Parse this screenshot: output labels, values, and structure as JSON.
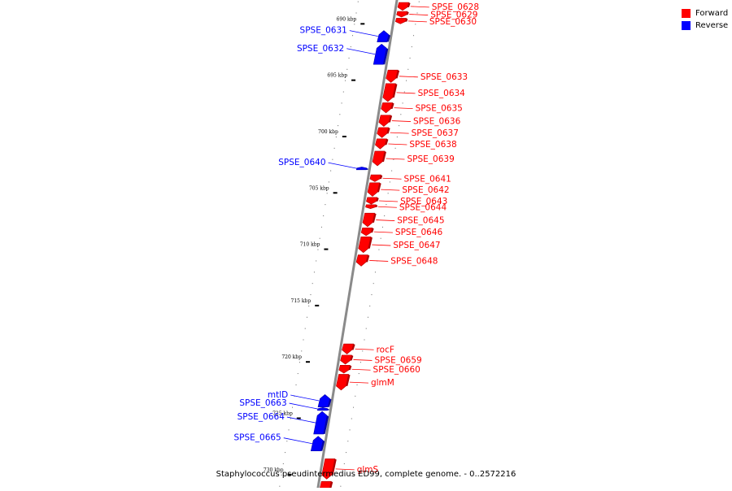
{
  "caption": "Staphylococcus pseudintermedius ED99, complete genome. - 0..2572216",
  "legend": [
    {
      "label": "Forward",
      "color": "#ff0000"
    },
    {
      "label": "Reverse",
      "color": "#0000ff"
    }
  ],
  "strand_colors": {
    "forward": "#ff0000",
    "reverse": "#0000ff",
    "backbone": "#8a8a8a"
  },
  "ticks": [
    {
      "label": "690 kbp",
      "kbp": 690
    },
    {
      "label": "695 kbp",
      "kbp": 695
    },
    {
      "label": "700 kbp",
      "kbp": 700
    },
    {
      "label": "705 kbp",
      "kbp": 705
    },
    {
      "label": "710 kbp",
      "kbp": 710
    },
    {
      "label": "715 kbp",
      "kbp": 715
    },
    {
      "label": "720 kbp",
      "kbp": 720
    },
    {
      "label": "725 kbp",
      "kbp": 725
    },
    {
      "label": "730 kbp",
      "kbp": 730
    }
  ],
  "genes": [
    {
      "name": "SPSE_0628",
      "strand": "forward",
      "start": 688.1,
      "end": 688.8
    },
    {
      "name": "SPSE_0629",
      "strand": "forward",
      "start": 688.9,
      "end": 689.4
    },
    {
      "name": "SPSE_0630",
      "strand": "forward",
      "start": 689.5,
      "end": 690.0
    },
    {
      "name": "SPSE_0631",
      "strand": "reverse",
      "start": 690.6,
      "end": 691.6
    },
    {
      "name": "SPSE_0632",
      "strand": "reverse",
      "start": 691.8,
      "end": 693.6
    },
    {
      "name": "SPSE_0633",
      "strand": "forward",
      "start": 694.1,
      "end": 695.2
    },
    {
      "name": "SPSE_0634",
      "strand": "forward",
      "start": 695.3,
      "end": 696.9
    },
    {
      "name": "SPSE_0635",
      "strand": "forward",
      "start": 697.0,
      "end": 697.9
    },
    {
      "name": "SPSE_0636",
      "strand": "forward",
      "start": 698.1,
      "end": 699.1
    },
    {
      "name": "SPSE_0637",
      "strand": "forward",
      "start": 699.2,
      "end": 700.1
    },
    {
      "name": "SPSE_0638",
      "strand": "forward",
      "start": 700.2,
      "end": 701.1
    },
    {
      "name": "SPSE_0639",
      "strand": "forward",
      "start": 701.3,
      "end": 702.6
    },
    {
      "name": "SPSE_0640",
      "strand": "reverse",
      "start": 702.7,
      "end": 702.95
    },
    {
      "name": "SPSE_0641",
      "strand": "forward",
      "start": 703.4,
      "end": 704.0
    },
    {
      "name": "SPSE_0642",
      "strand": "forward",
      "start": 704.1,
      "end": 705.3
    },
    {
      "name": "SPSE_0643",
      "strand": "forward",
      "start": 705.4,
      "end": 706.0
    },
    {
      "name": "SPSE_0644",
      "strand": "forward",
      "start": 706.05,
      "end": 706.4
    },
    {
      "name": "SPSE_0645",
      "strand": "forward",
      "start": 706.8,
      "end": 708.0
    },
    {
      "name": "SPSE_0646",
      "strand": "forward",
      "start": 708.1,
      "end": 708.8
    },
    {
      "name": "SPSE_0647",
      "strand": "forward",
      "start": 708.9,
      "end": 710.3
    },
    {
      "name": "SPSE_0648",
      "strand": "forward",
      "start": 710.5,
      "end": 711.5
    },
    {
      "name": "rocF",
      "strand": "forward",
      "start": 718.4,
      "end": 719.3
    },
    {
      "name": "SPSE_0659",
      "strand": "forward",
      "start": 719.4,
      "end": 720.2
    },
    {
      "name": "SPSE_0660",
      "strand": "forward",
      "start": 720.3,
      "end": 721.0
    },
    {
      "name": "glmM",
      "strand": "forward",
      "start": 721.1,
      "end": 722.5
    },
    {
      "name": "mtlD",
      "strand": "reverse",
      "start": 722.9,
      "end": 724.0
    },
    {
      "name": "SPSE_0663",
      "strand": "reverse",
      "start": 724.05,
      "end": 724.3
    },
    {
      "name": "SPSE_0664",
      "strand": "reverse",
      "start": 724.4,
      "end": 726.4
    },
    {
      "name": "SPSE_0665",
      "strand": "reverse",
      "start": 726.6,
      "end": 727.9
    },
    {
      "name": "glmS",
      "strand": "forward",
      "start": 728.6,
      "end": 730.4
    },
    {
      "name": "",
      "strand": "forward",
      "start": 730.6,
      "end": 731.8
    }
  ],
  "view": {
    "kbp_start": 687.45,
    "kbp_end": 731.6
  }
}
